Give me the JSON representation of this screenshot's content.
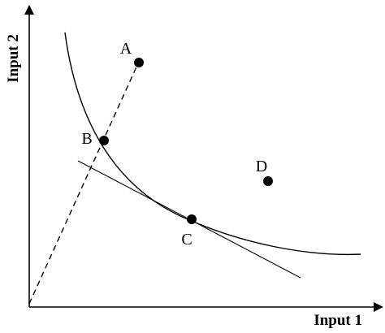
{
  "axes": {
    "x_label": "Input 1",
    "y_label": "Input 2"
  },
  "points": [
    {
      "id": "a",
      "label": "A"
    },
    {
      "id": "b",
      "label": "B"
    },
    {
      "id": "c",
      "label": "C"
    },
    {
      "id": "d",
      "label": "D"
    }
  ],
  "colors": {
    "ink": "#000000",
    "background": "#ffffff"
  }
}
